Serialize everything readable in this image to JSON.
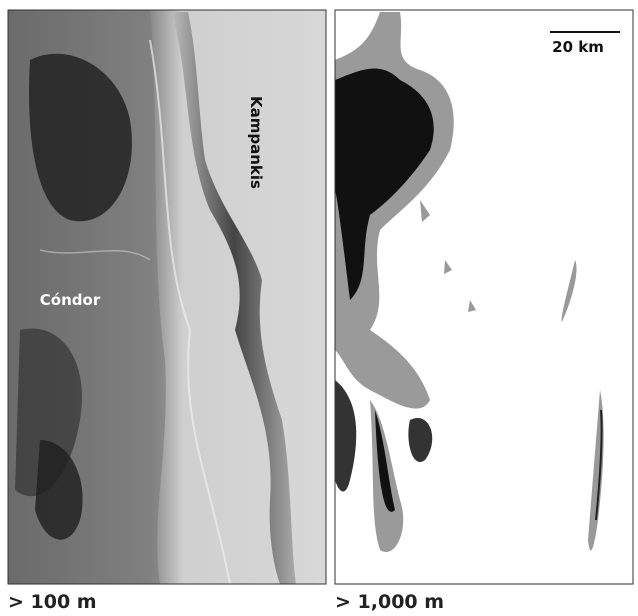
{
  "panels": [
    {
      "caption": "> 100 m",
      "labels": [
        "Cóndor",
        "Kampankis"
      ]
    },
    {
      "caption": "> 1,000 m",
      "scale_bar": "20 km"
    }
  ]
}
